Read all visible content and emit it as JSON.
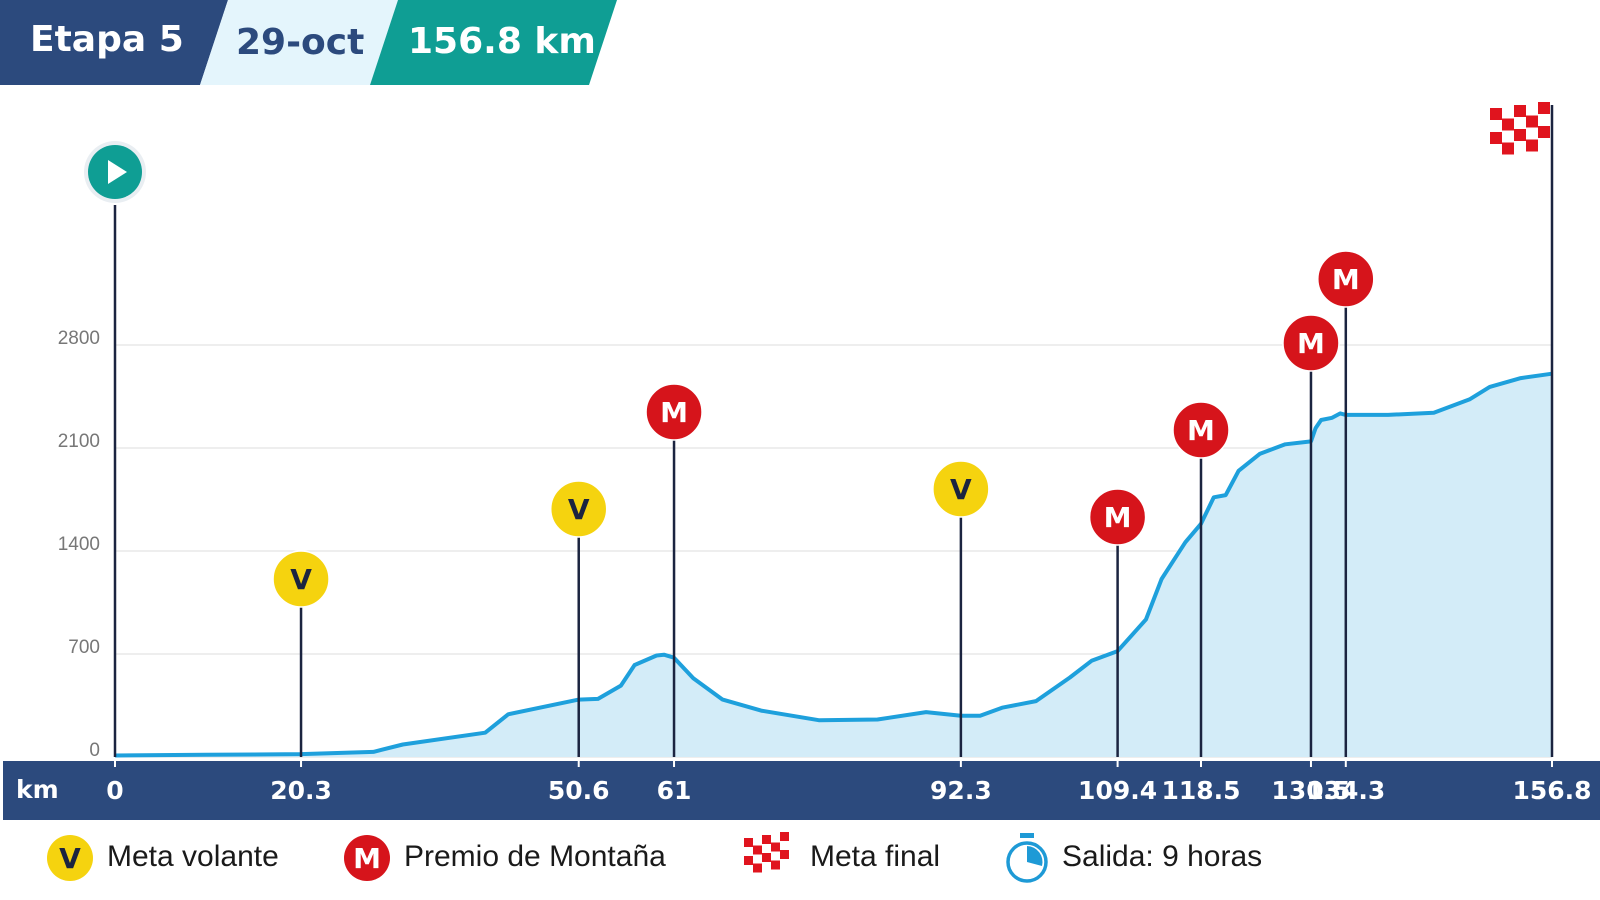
{
  "header": {
    "stage": "Etapa 5",
    "date": "29-oct",
    "distance": "156.8 km"
  },
  "chart_data": {
    "type": "area",
    "x_label": "km",
    "x": [
      0,
      9.9,
      20.3,
      28.2,
      31.4,
      40.4,
      42.9,
      50.6,
      52.7,
      55.2,
      56.7,
      59.1,
      59.9,
      61,
      63.1,
      66.3,
      70.5,
      76.8,
      83.2,
      88.5,
      92.3,
      94.4,
      96.8,
      100.5,
      104.2,
      106.6,
      109.4,
      111.2,
      112.5,
      114.2,
      115.5,
      116.8,
      118.5,
      119.9,
      121.2,
      122.6,
      124.9,
      127.7,
      130.5,
      131.0,
      131.6,
      132.8,
      133.7,
      134.3,
      138.9,
      143.9,
      147.8,
      150.0,
      153.4,
      156.8
    ],
    "values": [
      10,
      15,
      20,
      35,
      85,
      165,
      290,
      390,
      395,
      485,
      625,
      690,
      695,
      675,
      535,
      390,
      315,
      250,
      255,
      305,
      280,
      280,
      335,
      380,
      540,
      655,
      720,
      845,
      935,
      1210,
      1335,
      1460,
      1585,
      1765,
      1780,
      1945,
      2060,
      2125,
      2145,
      2235,
      2290,
      2305,
      2335,
      2325,
      2325,
      2340,
      2430,
      2515,
      2575,
      2605
    ],
    "color": "#1ea0dc",
    "fill": "#d3ecf8",
    "xlim": [
      0,
      156.8
    ],
    "xticks": [
      0,
      20.3,
      50.6,
      61,
      92.3,
      109.4,
      118.5,
      130.5,
      134.3,
      156.8
    ],
    "ylim": [
      0,
      4200
    ],
    "yticks": [
      0,
      700,
      1400,
      2100,
      2800
    ],
    "grid": true,
    "markers": [
      {
        "x": 20.3,
        "symbol": "V"
      },
      {
        "x": 50.6,
        "symbol": "V"
      },
      {
        "x": 61,
        "symbol": "M"
      },
      {
        "x": 92.3,
        "symbol": "V"
      },
      {
        "x": 109.4,
        "symbol": "M"
      },
      {
        "x": 118.5,
        "symbol": "M"
      },
      {
        "x": 130.5,
        "symbol": "M"
      },
      {
        "x": 134.3,
        "symbol": "M"
      }
    ]
  },
  "legend": [
    {
      "symbol": "V",
      "label": "Meta volante",
      "color": "#f5d30f"
    },
    {
      "symbol": "M",
      "label": "Premio de Montaña",
      "color": "#d6141b"
    },
    {
      "label": "Meta final"
    },
    {
      "label": "Salida: 9 horas"
    }
  ]
}
